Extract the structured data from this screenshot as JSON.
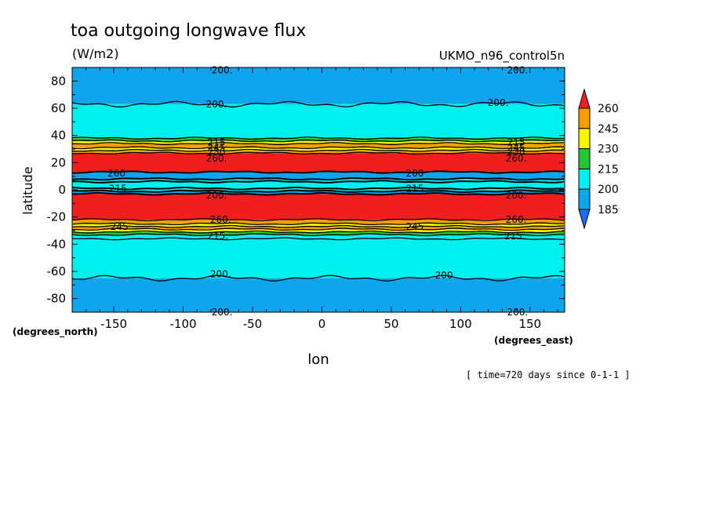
{
  "chart_data": {
    "type": "heatmap",
    "title": "toa outgoing longwave flux",
    "units": "(W/m2)",
    "dataset": "UKMO_n96_control5n",
    "xlabel": "lon",
    "ylabel": "latitude",
    "x_unit_label": "(degrees_east)",
    "y_unit_label": "(degrees_north)",
    "time_label": "[ time=720 days since 0-1-1 ]",
    "xlim": [
      -180,
      175
    ],
    "ylim": [
      -90,
      90
    ],
    "x_ticks": [
      -150,
      -100,
      -50,
      0,
      50,
      100,
      150
    ],
    "x_tick_labels": [
      "-150",
      "-100",
      "-50",
      "0",
      "50",
      "100",
      "150"
    ],
    "y_ticks": [
      80,
      60,
      40,
      20,
      0,
      -20,
      -40,
      -60,
      -80
    ],
    "y_tick_labels": [
      "80",
      "60",
      "40",
      "20",
      "0",
      "-20",
      "-40",
      "-60",
      "-80"
    ],
    "levels": [
      185,
      200,
      215,
      230,
      245,
      260
    ],
    "colorbar_labels": [
      "260",
      "245",
      "230",
      "215",
      "200",
      "185"
    ],
    "colors": {
      "below_185": "#1a6ef2",
      "185_200": "#0ea5ee",
      "200_215": "#00f0f0",
      "215_230": "#22c832",
      "230_245": "#f5f500",
      "245_260": "#f5a000",
      "above_260": "#f01e1e"
    },
    "zonal_bands": [
      {
        "lat_from": 63,
        "lat_to": 90,
        "level": "185_200"
      },
      {
        "lat_from": 38,
        "lat_to": 63,
        "level": "200_215"
      },
      {
        "lat_from": 36,
        "lat_to": 38,
        "level": "215_230"
      },
      {
        "lat_from": 34,
        "lat_to": 36,
        "level": "230_245"
      },
      {
        "lat_from": 31,
        "lat_to": 34,
        "level": "245_260"
      },
      {
        "lat_from": 29,
        "lat_to": 31,
        "level": "230_245"
      },
      {
        "lat_from": 27,
        "lat_to": 29,
        "level": "245_260"
      },
      {
        "lat_from": 13,
        "lat_to": 27,
        "level": "above_260"
      },
      {
        "lat_from": 8,
        "lat_to": 13,
        "level": "185_200"
      },
      {
        "lat_from": 6,
        "lat_to": 8,
        "level": "200_215"
      },
      {
        "lat_from": 1,
        "lat_to": 6,
        "level": "200_215"
      },
      {
        "lat_from": -1,
        "lat_to": 1,
        "level": "200_215"
      },
      {
        "lat_from": -3,
        "lat_to": -1,
        "level": "185_200"
      },
      {
        "lat_from": -22,
        "lat_to": -3,
        "level": "above_260"
      },
      {
        "lat_from": -25,
        "lat_to": -22,
        "level": "245_260"
      },
      {
        "lat_from": -27,
        "lat_to": -25,
        "level": "230_245"
      },
      {
        "lat_from": -29,
        "lat_to": -27,
        "level": "245_260"
      },
      {
        "lat_from": -31,
        "lat_to": -29,
        "level": "230_245"
      },
      {
        "lat_from": -33,
        "lat_to": -31,
        "level": "215_230"
      },
      {
        "lat_from": -36,
        "lat_to": -33,
        "level": "200_215"
      },
      {
        "lat_from": -65,
        "lat_to": -36,
        "level": "200_215"
      },
      {
        "lat_from": -90,
        "lat_to": -65,
        "level": "185_200"
      }
    ],
    "contour_labels": [
      {
        "text": "200.",
        "lon": -72,
        "lat": 88
      },
      {
        "text": "200.",
        "lon": 141,
        "lat": 88
      },
      {
        "text": "200.",
        "lon": -76,
        "lat": 63
      },
      {
        "text": "200.",
        "lon": 127,
        "lat": 64
      },
      {
        "text": "215",
        "lon": -76,
        "lat": 35
      },
      {
        "text": "245",
        "lon": -76,
        "lat": 31
      },
      {
        "text": "230",
        "lon": -76,
        "lat": 28
      },
      {
        "text": "260.",
        "lon": -76,
        "lat": 23
      },
      {
        "text": "215",
        "lon": 140,
        "lat": 35
      },
      {
        "text": "245",
        "lon": 140,
        "lat": 31
      },
      {
        "text": "230",
        "lon": 140,
        "lat": 28
      },
      {
        "text": "260.",
        "lon": 140,
        "lat": 23
      },
      {
        "text": "260",
        "lon": -148,
        "lat": 12
      },
      {
        "text": "200",
        "lon": 67,
        "lat": 12
      },
      {
        "text": "215",
        "lon": -147,
        "lat": 1
      },
      {
        "text": "215",
        "lon": 67,
        "lat": 1
      },
      {
        "text": "200.",
        "lon": -76,
        "lat": -4
      },
      {
        "text": "200.",
        "lon": 140,
        "lat": -4
      },
      {
        "text": "260.",
        "lon": -73,
        "lat": -22
      },
      {
        "text": "260.",
        "lon": 140,
        "lat": -22
      },
      {
        "text": "245",
        "lon": -146,
        "lat": -27
      },
      {
        "text": "245",
        "lon": 67,
        "lat": -27
      },
      {
        "text": "215.",
        "lon": -75,
        "lat": -34
      },
      {
        "text": "215.",
        "lon": 139,
        "lat": -34
      },
      {
        "text": "200.",
        "lon": -73,
        "lat": -62
      },
      {
        "text": "200",
        "lon": 88,
        "lat": -63
      },
      {
        "text": "200.",
        "lon": -72,
        "lat": -90
      },
      {
        "text": "200.",
        "lon": 141,
        "lat": -90
      }
    ]
  }
}
